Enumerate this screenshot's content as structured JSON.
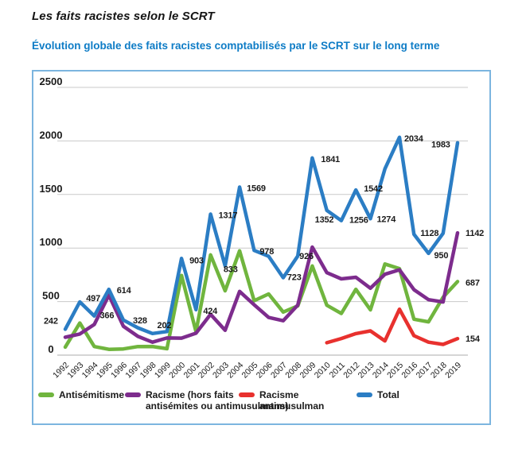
{
  "title": "Les faits racistes selon le SCRT",
  "subtitle": "Évolution globale des faits racistes comptabilisés par le SCRT sur le long terme",
  "colors": {
    "subtitle_blue": "#0e7cc6",
    "box_border": "#7cb5df",
    "gridline": "#c9c9c9",
    "axis_line": "#ababab",
    "text": "#1a1a1a"
  },
  "chart_data": {
    "type": "line",
    "title": "Évolution globale des faits racistes comptabilisés par le SCRT sur le long terme",
    "x": [
      "1992",
      "1993",
      "1994",
      "1995",
      "1996",
      "1997",
      "1998",
      "1999",
      "2000",
      "2001",
      "2002",
      "2003",
      "2004",
      "2005",
      "2006",
      "2007",
      "2008",
      "2009",
      "2010",
      "2011",
      "2012",
      "2013",
      "2014",
      "2015",
      "2016",
      "2017",
      "2018",
      "2019"
    ],
    "xlabel": "",
    "ylabel": "",
    "ylim": [
      0,
      2500
    ],
    "yticks": [
      0,
      500,
      1000,
      1500,
      2000,
      2500
    ],
    "grid": true,
    "legend_position": "bottom-inside",
    "series": [
      {
        "id": "antisemitisme",
        "name": "Antisémitisme",
        "legend_lines": [
          "Antisémitisme"
        ],
        "color": "#70B53E",
        "values": [
          75,
          300,
          80,
          54,
          58,
          80,
          81,
          60,
          744,
          219,
          936,
          601,
          974,
          508,
          571,
          402,
          459,
          832,
          466,
          389,
          614,
          423,
          851,
          808,
          335,
          311,
          541,
          687
        ]
      },
      {
        "id": "racisme-hors",
        "name": "Racisme (hors faits antisémites ou antimusulmans)",
        "legend_lines": [
          "Racisme (hors faits",
          "antisémites ou antimusulmans)"
        ],
        "color": "#7D2C8D",
        "values": [
          167,
          197,
          286,
          560,
          270,
          175,
          121,
          160,
          159,
          205,
          381,
          232,
          595,
          470,
          352,
          321,
          467,
          1009,
          770,
          712,
          727,
          625,
          755,
          797,
          611,
          518,
          496,
          1142
        ]
      },
      {
        "id": "racisme-antimusulman",
        "name": "Racisme antimusulman",
        "legend_lines": [
          "Racisme",
          "antimusulman"
        ],
        "color": "#E8312E",
        "values": [
          null,
          null,
          null,
          null,
          null,
          null,
          null,
          null,
          null,
          null,
          null,
          null,
          null,
          null,
          null,
          null,
          null,
          null,
          116,
          155,
          201,
          226,
          133,
          429,
          182,
          121,
          100,
          154
        ]
      },
      {
        "id": "total",
        "name": "Total",
        "legend_lines": [
          "Total"
        ],
        "color": "#2B7DC4",
        "values": [
          242,
          497,
          366,
          614,
          328,
          255,
          202,
          220,
          903,
          424,
          1317,
          833,
          1569,
          978,
          923,
          723,
          926,
          1841,
          1352,
          1256,
          1542,
          1274,
          1739,
          2034,
          1128,
          950,
          1137,
          1983
        ]
      }
    ],
    "point_labels": [
      {
        "series": "total",
        "year": "1992",
        "text": "242"
      },
      {
        "series": "total",
        "year": "1993",
        "text": "497"
      },
      {
        "series": "total",
        "year": "1994",
        "text": "366"
      },
      {
        "series": "total",
        "year": "1995",
        "text": "614"
      },
      {
        "series": "total",
        "year": "1996",
        "text": "328"
      },
      {
        "series": "total",
        "year": "1998",
        "text": "202"
      },
      {
        "series": "total",
        "year": "2000",
        "text": "903"
      },
      {
        "series": "total",
        "year": "2001",
        "text": "424"
      },
      {
        "series": "total",
        "year": "2002",
        "text": "1317"
      },
      {
        "series": "total",
        "year": "2003",
        "text": "833"
      },
      {
        "series": "total",
        "year": "2004",
        "text": "1569"
      },
      {
        "series": "total",
        "year": "2005",
        "text": "978"
      },
      {
        "series": "total",
        "year": "2007",
        "text": "723"
      },
      {
        "series": "total",
        "year": "2008",
        "text": "926"
      },
      {
        "series": "total",
        "year": "2009",
        "text": "1841"
      },
      {
        "series": "total",
        "year": "2010",
        "text": "1352"
      },
      {
        "series": "total",
        "year": "2011",
        "text": "1256"
      },
      {
        "series": "total",
        "year": "2012",
        "text": "1542"
      },
      {
        "series": "total",
        "year": "2013",
        "text": "1274"
      },
      {
        "series": "total",
        "year": "2015",
        "text": "2034"
      },
      {
        "series": "total",
        "year": "2016",
        "text": "1128"
      },
      {
        "series": "total",
        "year": "2017",
        "text": "950"
      },
      {
        "series": "total",
        "year": "2019",
        "text": "1983"
      },
      {
        "series": "racisme-hors",
        "year": "2019",
        "text": "1142"
      },
      {
        "series": "antisemitisme",
        "year": "2019",
        "text": "687"
      },
      {
        "series": "racisme-antimusulman",
        "year": "2019",
        "text": "154"
      }
    ]
  }
}
